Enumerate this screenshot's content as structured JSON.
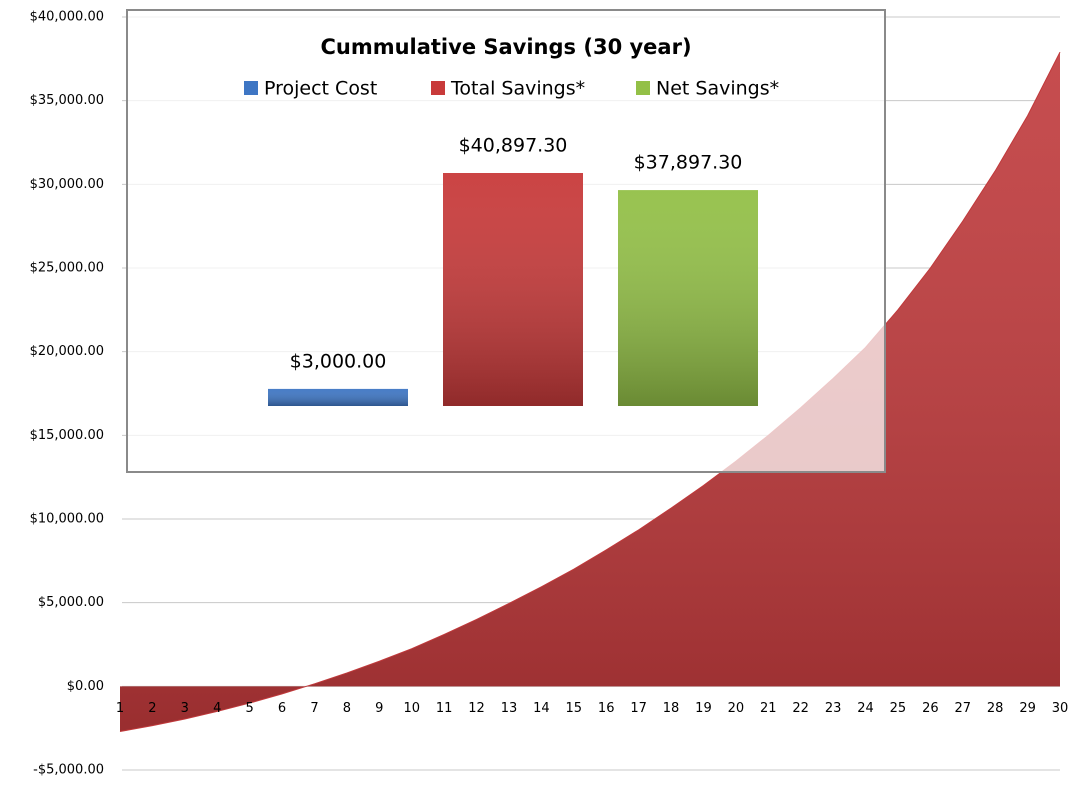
{
  "chart_data": [
    {
      "type": "area",
      "categories": [
        "1",
        "2",
        "3",
        "4",
        "5",
        "6",
        "7",
        "8",
        "9",
        "10",
        "11",
        "12",
        "13",
        "14",
        "15",
        "16",
        "17",
        "18",
        "19",
        "20",
        "21",
        "22",
        "23",
        "24",
        "25",
        "26",
        "27",
        "28",
        "29",
        "30"
      ],
      "values": [
        -2700,
        -2350,
        -1950,
        -1500,
        -1000,
        -450,
        150,
        800,
        1500,
        2250,
        3100,
        4000,
        4950,
        5950,
        7000,
        8150,
        9350,
        10650,
        12000,
        13450,
        15000,
        16650,
        18400,
        20250,
        22500,
        25000,
        27800,
        30800,
        34100,
        37900
      ],
      "color": "#c0393b",
      "ylim": [
        -5000,
        40000
      ],
      "yticks": [
        {
          "value": -5000,
          "label": "-$5,000.00"
        },
        {
          "value": 0,
          "label": "$0.00"
        },
        {
          "value": 5000,
          "label": "$5,000.00"
        },
        {
          "value": 10000,
          "label": "$10,000.00"
        },
        {
          "value": 15000,
          "label": "$15,000.00"
        },
        {
          "value": 20000,
          "label": "$20,000.00"
        },
        {
          "value": 25000,
          "label": "$25,000.00"
        },
        {
          "value": 30000,
          "label": "$30,000.00"
        },
        {
          "value": 35000,
          "label": "$35,000.00"
        },
        {
          "value": 40000,
          "label": "$40,000.00"
        }
      ],
      "grid": true
    },
    {
      "type": "bar",
      "title": "Cummulative Savings (30 year)",
      "legend": "top",
      "series": [
        {
          "name": "Project Cost",
          "color": "#3e76c4",
          "values": [
            3000
          ],
          "value_labels": [
            "$3,000.00"
          ]
        },
        {
          "name": "Total Savings*",
          "color": "#c83a3a",
          "values": [
            40897.3
          ],
          "value_labels": [
            "$40,897.30"
          ]
        },
        {
          "name": "Net Savings*",
          "color": "#93c047",
          "values": [
            37897.3
          ],
          "value_labels": [
            "$37,897.30"
          ]
        }
      ]
    }
  ]
}
